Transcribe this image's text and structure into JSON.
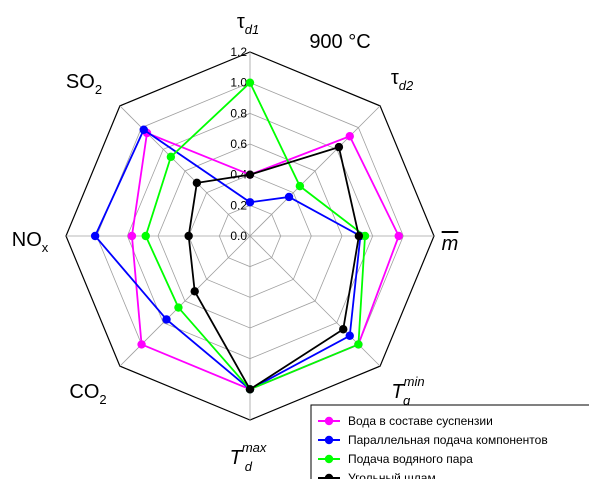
{
  "chart_data": {
    "type": "radar",
    "title": "900 °C",
    "axes": [
      {
        "base": "τ",
        "sub": "d1",
        "sup": ""
      },
      {
        "base": "τ",
        "sub": "d2",
        "sup": ""
      },
      {
        "base": "m",
        "sub": "",
        "sup": "",
        "overline": true
      },
      {
        "base": "T",
        "sub": "g",
        "sup": "min"
      },
      {
        "base": "T",
        "sub": "d",
        "sup": "max"
      },
      {
        "base": "CO",
        "sub": "2",
        "sup": ""
      },
      {
        "base": "NO",
        "sub": "x",
        "sup": ""
      },
      {
        "base": "SO",
        "sub": "2",
        "sup": ""
      }
    ],
    "rmax": 1.2,
    "ticks": [
      "0.0",
      "0.2",
      "0.4",
      "0.6",
      "0.8",
      "1.0",
      "1.2"
    ],
    "grid": true,
    "legend_position": "bottom-right",
    "series": [
      {
        "name": "Вода в составе суспензии",
        "color": "#ff00ff",
        "values": [
          0.4,
          0.92,
          0.97,
          1.0,
          1.0,
          1.0,
          0.77,
          0.95
        ]
      },
      {
        "name": "Параллельная подача компонентов",
        "color": "#0000ff",
        "values": [
          0.22,
          0.36,
          0.72,
          0.92,
          1.0,
          0.77,
          1.01,
          0.98
        ]
      },
      {
        "name": "Подача водяного пара",
        "color": "#00ff00",
        "values": [
          1.0,
          0.46,
          0.75,
          1.0,
          1.0,
          0.66,
          0.68,
          0.73
        ]
      },
      {
        "name": "Угольный шлам",
        "color": "#000000",
        "values": [
          0.4,
          0.82,
          0.71,
          0.86,
          1.0,
          0.51,
          0.4,
          0.49
        ]
      }
    ]
  }
}
